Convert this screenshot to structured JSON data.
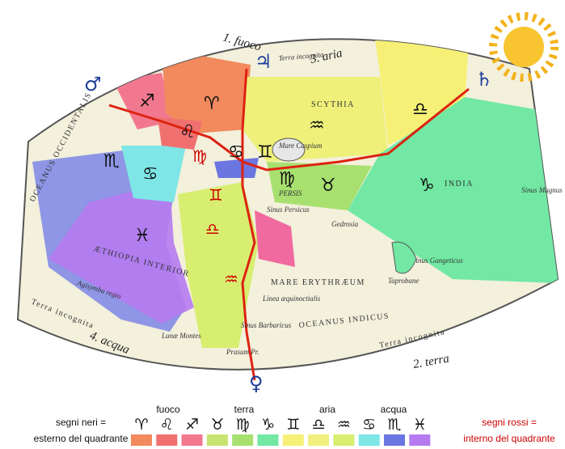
{
  "quadrants": [
    "1. fuoco",
    "2. terra",
    "3. aria",
    "4. acqua"
  ],
  "planets": [
    "♃",
    "♄",
    "♂",
    "♀"
  ],
  "map_signs": [
    "♐",
    "♈",
    "♌",
    "♍",
    "♋",
    "♊",
    "♒",
    "♎",
    "♍",
    "♉",
    "♑",
    "♏",
    "♋",
    "♓",
    "♊",
    "♎",
    "♒"
  ],
  "places": [
    "Terra incognita",
    "SCYTHIA",
    "Mare Caspium",
    "Sinus Persicus",
    "PERSIS",
    "INDIA",
    "Sinus Gangeticus",
    "Sinus Magnus",
    "MARE ERYTHRÆUM",
    "Linea æquinoctialis",
    "OCEANUS INDICUS",
    "OCEANUS OCCIDENTALIS",
    "ÆTHIOPIA INTERIOR",
    "Agisymba regio",
    "Sinus Barbaricus",
    "Prasum Pr.",
    "Lunæ Montes",
    "Gedrosia",
    "Taprobane",
    "Terra incognita",
    "Terra incognita"
  ],
  "legend": {
    "left": [
      "segni neri =",
      "esterno del quadrante"
    ],
    "groups": [
      "fuoco",
      "terra",
      "aria",
      "acqua"
    ],
    "signs": [
      "♈",
      "♌",
      "♐",
      "♉",
      "♍",
      "♑",
      "♊",
      "♎",
      "♒",
      "♋",
      "♏",
      "♓"
    ],
    "right": [
      "segni rossi =",
      "interno del quadrante"
    ]
  }
}
